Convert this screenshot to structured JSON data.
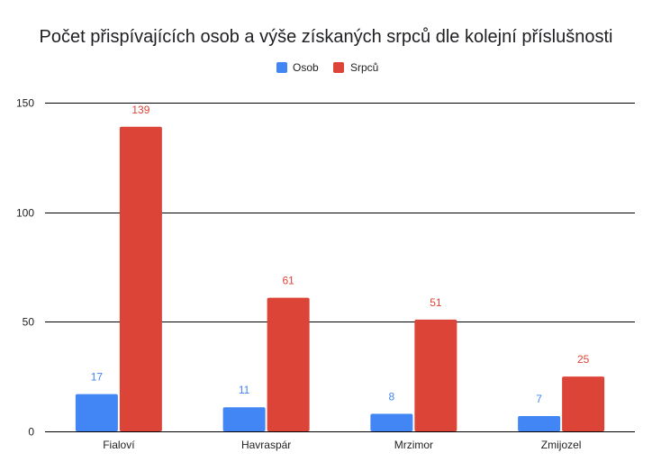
{
  "chart_data": {
    "type": "bar",
    "title": "Počet přispívajících osob a výše získaných srpců dle kolejní příslušnosti",
    "categories": [
      "Fialoví",
      "Havraspár",
      "Mrzimor",
      "Zmijozel"
    ],
    "series": [
      {
        "name": "Osob",
        "values": [
          17,
          11,
          8,
          7
        ],
        "color": "#4285f4"
      },
      {
        "name": "Srpců",
        "values": [
          139,
          61,
          51,
          25
        ],
        "color": "#db4437"
      }
    ],
    "yticks": [
      "0",
      "50",
      "100",
      "150"
    ],
    "ylim": [
      0,
      150
    ],
    "grid": true,
    "legend_position": "top",
    "data_labels": true
  }
}
